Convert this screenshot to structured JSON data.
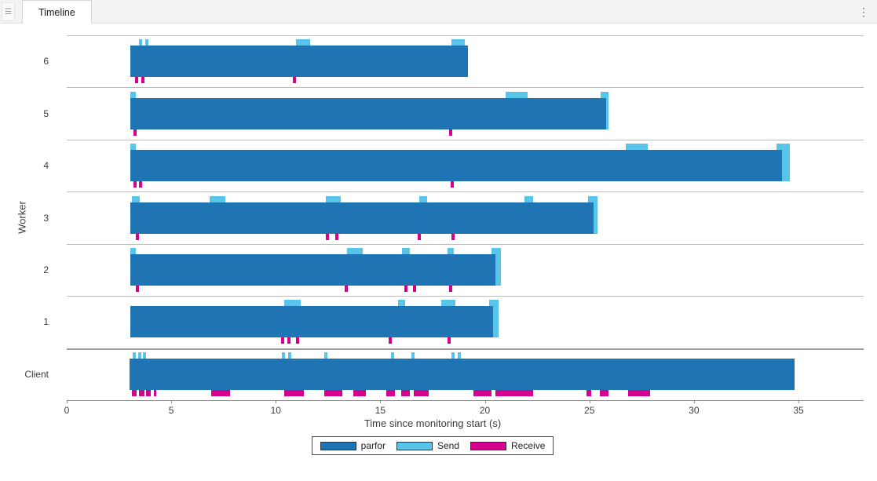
{
  "window": {
    "tab": "Timeline",
    "grip_icon": "☰",
    "overflow_icon": "⋮"
  },
  "chart_data": {
    "type": "timeline",
    "title": "Timeline",
    "xlabel": "Time since monitoring start (s)",
    "ylabel": "Worker",
    "xlim": [
      0,
      35
    ],
    "xticks": [
      0,
      5,
      10,
      15,
      20,
      25,
      30,
      35
    ],
    "grid": false,
    "legend_position": "bottom-center",
    "colors": {
      "parfor": "#1F74B4",
      "send": "#58C4EA",
      "receive": "#D6008E"
    },
    "legend": [
      {
        "label": "parfor",
        "color": "#1F74B4"
      },
      {
        "label": "Send",
        "color": "#58C4EA"
      },
      {
        "label": "Receive",
        "color": "#D6008E"
      }
    ],
    "rows": [
      {
        "label": "6",
        "parfor": [
          [
            3.05,
            19.2
          ]
        ],
        "send": [
          [
            3.45,
            3.6
          ],
          [
            3.75,
            3.9
          ],
          [
            10.95,
            11.65
          ],
          [
            18.4,
            19.05
          ]
        ],
        "receive": [
          [
            3.25,
            3.4
          ],
          [
            3.55,
            3.7
          ],
          [
            10.8,
            10.95
          ]
        ]
      },
      {
        "label": "5",
        "parfor": [
          [
            3.05,
            25.8
          ]
        ],
        "send": [
          [
            3.05,
            3.3
          ],
          [
            21.0,
            22.05
          ],
          [
            25.55,
            25.9
          ]
        ],
        "receive": [
          [
            3.2,
            3.35
          ],
          [
            18.3,
            18.45
          ]
        ]
      },
      {
        "label": "4",
        "parfor": [
          [
            3.05,
            34.2
          ]
        ],
        "send": [
          [
            3.05,
            3.3
          ],
          [
            26.75,
            27.8
          ],
          [
            33.95,
            34.6
          ]
        ],
        "receive": [
          [
            3.2,
            3.35
          ],
          [
            3.45,
            3.6
          ],
          [
            18.35,
            18.5
          ]
        ]
      },
      {
        "label": "3",
        "parfor": [
          [
            3.05,
            25.2
          ]
        ],
        "send": [
          [
            3.1,
            3.5
          ],
          [
            6.85,
            7.6
          ],
          [
            12.4,
            13.1
          ],
          [
            16.85,
            17.25
          ],
          [
            21.9,
            22.3
          ],
          [
            24.95,
            25.4
          ]
        ],
        "receive": [
          [
            3.3,
            3.45
          ],
          [
            12.4,
            12.55
          ],
          [
            12.85,
            13.0
          ],
          [
            16.8,
            16.95
          ],
          [
            18.4,
            18.55
          ]
        ]
      },
      {
        "label": "2",
        "parfor": [
          [
            3.05,
            20.5
          ]
        ],
        "send": [
          [
            3.05,
            3.3
          ],
          [
            13.4,
            14.15
          ],
          [
            16.05,
            16.4
          ],
          [
            18.2,
            18.5
          ],
          [
            20.3,
            20.75
          ]
        ],
        "receive": [
          [
            3.3,
            3.45
          ],
          [
            13.3,
            13.45
          ],
          [
            16.15,
            16.3
          ],
          [
            16.55,
            16.7
          ],
          [
            18.3,
            18.45
          ]
        ]
      },
      {
        "label": "1",
        "parfor": [
          [
            3.05,
            20.4
          ]
        ],
        "send": [
          [
            10.4,
            11.2
          ],
          [
            15.85,
            16.2
          ],
          [
            17.9,
            18.6
          ],
          [
            20.2,
            20.65
          ]
        ],
        "receive": [
          [
            10.25,
            10.4
          ],
          [
            10.55,
            10.7
          ],
          [
            10.95,
            11.1
          ],
          [
            15.4,
            15.55
          ],
          [
            18.2,
            18.35
          ]
        ]
      },
      {
        "label": "Client",
        "parfor": [
          [
            3.0,
            34.8
          ]
        ],
        "send": [
          [
            3.15,
            3.3
          ],
          [
            3.4,
            3.55
          ],
          [
            3.65,
            3.8
          ],
          [
            10.3,
            10.45
          ],
          [
            10.6,
            10.75
          ],
          [
            12.3,
            12.45
          ],
          [
            15.5,
            15.65
          ],
          [
            16.5,
            16.65
          ],
          [
            18.4,
            18.55
          ],
          [
            18.7,
            18.85
          ]
        ],
        "receive": [
          [
            3.1,
            3.35
          ],
          [
            3.45,
            3.7
          ],
          [
            3.8,
            4.0
          ],
          [
            4.15,
            4.3
          ],
          [
            6.9,
            7.8
          ],
          [
            10.4,
            11.35
          ],
          [
            12.3,
            13.2
          ],
          [
            13.7,
            14.3
          ],
          [
            15.3,
            15.7
          ],
          [
            16.0,
            16.4
          ],
          [
            16.6,
            17.3
          ],
          [
            19.45,
            20.3
          ],
          [
            20.5,
            22.3
          ],
          [
            24.85,
            25.1
          ],
          [
            25.5,
            25.9
          ],
          [
            26.85,
            27.9
          ]
        ]
      }
    ]
  }
}
